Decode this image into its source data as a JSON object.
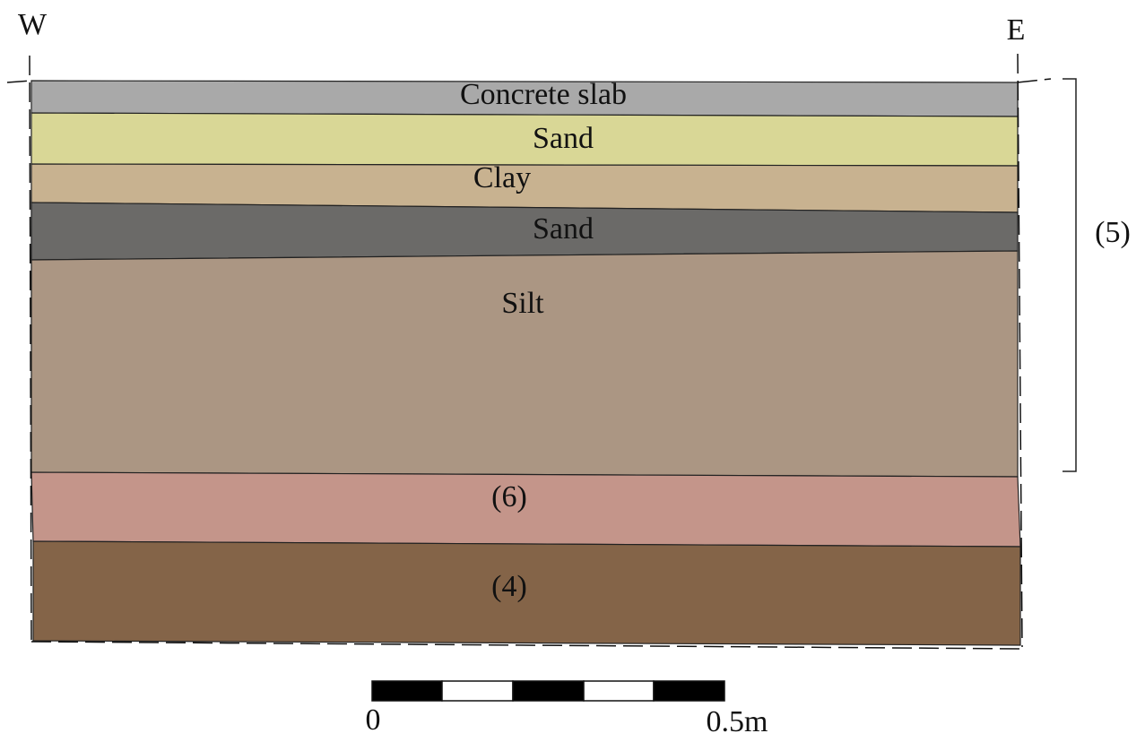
{
  "orientation": {
    "west": "W",
    "east": "E"
  },
  "layers": [
    {
      "label": "Concrete slab"
    },
    {
      "label": "Sand"
    },
    {
      "label": "Clay"
    },
    {
      "label": "Sand"
    },
    {
      "label": "Silt"
    },
    {
      "label": "(6)"
    },
    {
      "label": "(4)"
    }
  ],
  "bracket_label": "(5)",
  "scale_bar": {
    "start": "0",
    "end": "0.5m"
  }
}
